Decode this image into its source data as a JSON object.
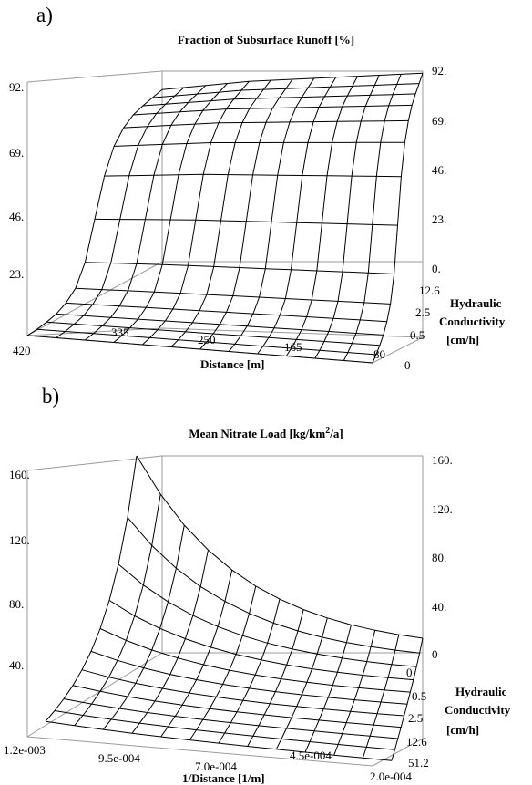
{
  "chart_data": [
    {
      "panel": "a)",
      "type": "surface",
      "title": "Fraction of Subsurface Runoff [%]",
      "xlabel": "Distance [m]",
      "zlabel_lines": [
        "Hydraulic",
        "Conductivity",
        "[cm/h]"
      ],
      "x_ticks": [
        "420",
        "335",
        "250",
        "165",
        "80"
      ],
      "y_ticks": [
        "0",
        "0.5",
        "2.5",
        "12.6"
      ],
      "z_ticks_left": [
        "23.",
        "46.",
        "69.",
        "92."
      ],
      "z_ticks_right": [
        "0.",
        "23.",
        "46.",
        "69.",
        "92."
      ],
      "zlim": [
        0,
        92
      ],
      "x_range": [
        80,
        420
      ],
      "y_values_conductivity": [
        0,
        0.5,
        2.5,
        12.6
      ],
      "z_grid_note": "fraction rises from ~0 at low conductivity to ~88-92 at high conductivity; nearly independent of distance",
      "z_profile_by_conductivity_row": [
        0,
        0.5,
        1.5,
        3,
        6,
        11,
        22,
        42,
        62,
        75,
        82,
        86,
        88,
        89.5,
        91
      ],
      "z_distance_trend": [
        84,
        85,
        86,
        87,
        88,
        88.5,
        89,
        89.5,
        90,
        90.5,
        91,
        91.5,
        92
      ]
    },
    {
      "panel": "b)",
      "type": "surface",
      "title": "Mean Nitrate Load [kg/km2/a]",
      "title_main": "Mean Nitrate Load [kg/km",
      "title_sup": "2",
      "title_tail": "/a]",
      "xlabel": "1/Distance [1/m]",
      "zlabel_lines": [
        "Hydraulic",
        "Conductivity",
        "[cm/h]"
      ],
      "x_ticks": [
        "1.2e-003",
        "9.5e-004",
        "7.0e-004",
        "4.5e-004",
        "2.0e-004"
      ],
      "y_ticks": [
        "0",
        "0.5",
        "2.5",
        "12.6",
        "51.2"
      ],
      "z_ticks_left": [
        "40.",
        "80.",
        "120.",
        "160."
      ],
      "z_ticks_right": [
        "0",
        "40.",
        "80.",
        "120.",
        "160."
      ],
      "zlim": [
        0,
        160
      ],
      "x_range": [
        0.0002,
        0.0012
      ],
      "y_values_conductivity": [
        0,
        0.5,
        2.5,
        12.6,
        51.2
      ],
      "z_grid_note": "load peaks (~160) at high 1/Distance and low conductivity, decaying toward 0 at low 1/Distance and high conductivity"
    }
  ]
}
